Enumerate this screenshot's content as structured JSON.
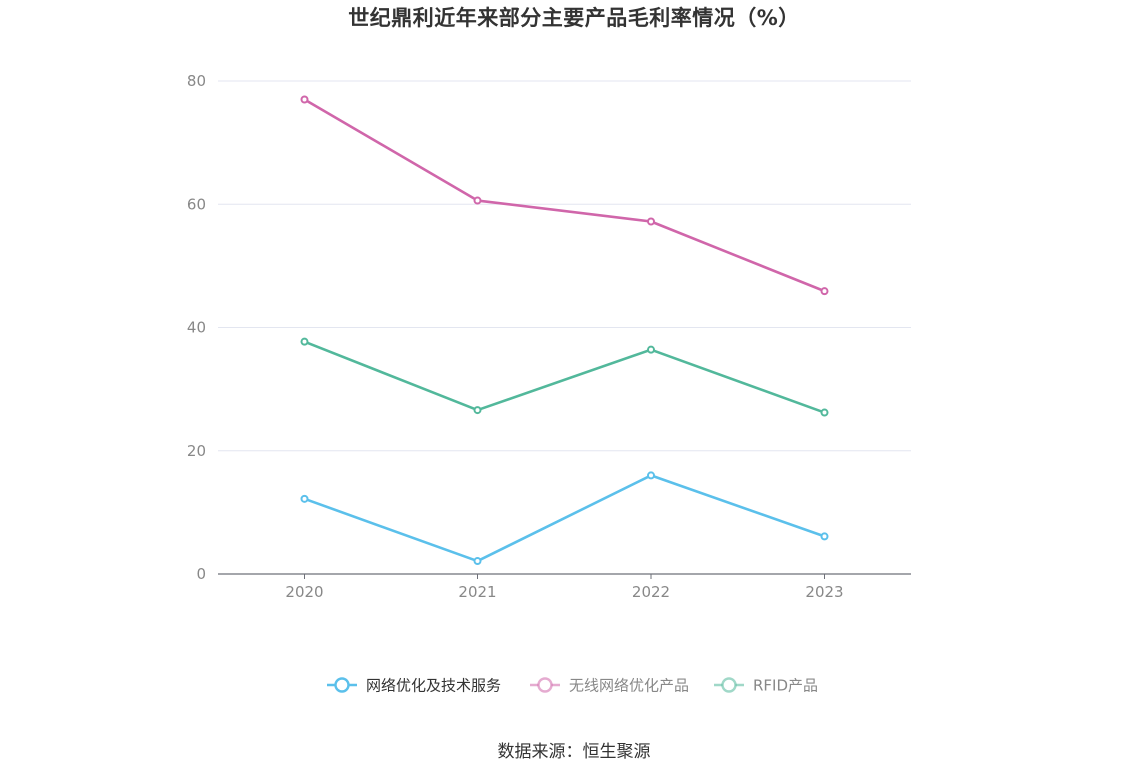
{
  "title": "世纪鼎利近年来部分主要产品毛利率情况（%）",
  "source": "数据来源：恒生聚源",
  "chart_data": {
    "type": "line",
    "title": "世纪鼎利近年来部分主要产品毛利率情况（%）",
    "categories": [
      "2020",
      "2021",
      "2022",
      "2023"
    ],
    "ylim": [
      0,
      80
    ],
    "yticks": [
      "0",
      "20",
      "40",
      "60",
      "80"
    ],
    "grid": true,
    "legend_position": "bottom",
    "series": [
      {
        "name": "网络优化及技术服务",
        "color": "#5bc0eb",
        "values": [
          12.2,
          2.1,
          16.0,
          6.1
        ]
      },
      {
        "name": "无线网络优化产品",
        "color": "#d066aa",
        "values": [
          77.0,
          60.6,
          57.2,
          45.9
        ]
      },
      {
        "name": "RFID产品",
        "color": "#52b89b",
        "values": [
          37.7,
          26.6,
          36.4,
          26.2
        ]
      }
    ]
  }
}
